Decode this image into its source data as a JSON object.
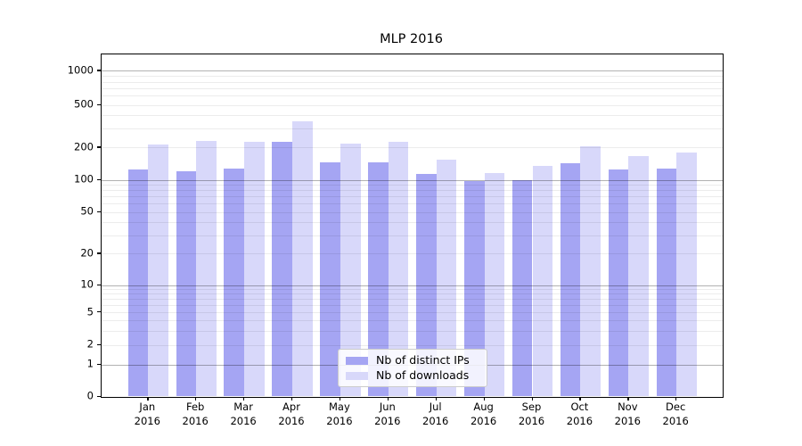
{
  "chart_data": {
    "type": "bar",
    "title": "MLP 2016",
    "categories": [
      "Jan",
      "Feb",
      "Mar",
      "Apr",
      "May",
      "Jun",
      "Jul",
      "Aug",
      "Sep",
      "Oct",
      "Nov",
      "Dec"
    ],
    "year_label": "2016",
    "series": [
      {
        "name": "Nb of distinct IPs",
        "color": "#a5a5f3",
        "values": [
          125,
          121,
          128,
          225,
          145,
          145,
          113,
          97,
          100,
          142,
          126,
          128
        ]
      },
      {
        "name": "Nb of downloads",
        "color": "#d8d8fa",
        "values": [
          215,
          230,
          228,
          350,
          218,
          225,
          153,
          117,
          136,
          205,
          165,
          178
        ]
      }
    ],
    "yscale": "symlog",
    "yticks": [
      0,
      1,
      2,
      5,
      10,
      20,
      50,
      100,
      200,
      500,
      1000
    ],
    "ylim": [
      0,
      1412
    ],
    "grid": "both",
    "gridlines": {
      "major": [
        1,
        10,
        100,
        1000
      ],
      "minor": [
        2,
        3,
        4,
        5,
        6,
        7,
        8,
        9,
        20,
        30,
        40,
        50,
        60,
        70,
        80,
        90,
        200,
        300,
        400,
        500,
        600,
        700,
        800,
        900
      ]
    },
    "legend_position": "lower center",
    "frame_color": "#000000",
    "major_grid_color": "#b0b0b0",
    "minor_grid_color": "#ebebeb"
  }
}
